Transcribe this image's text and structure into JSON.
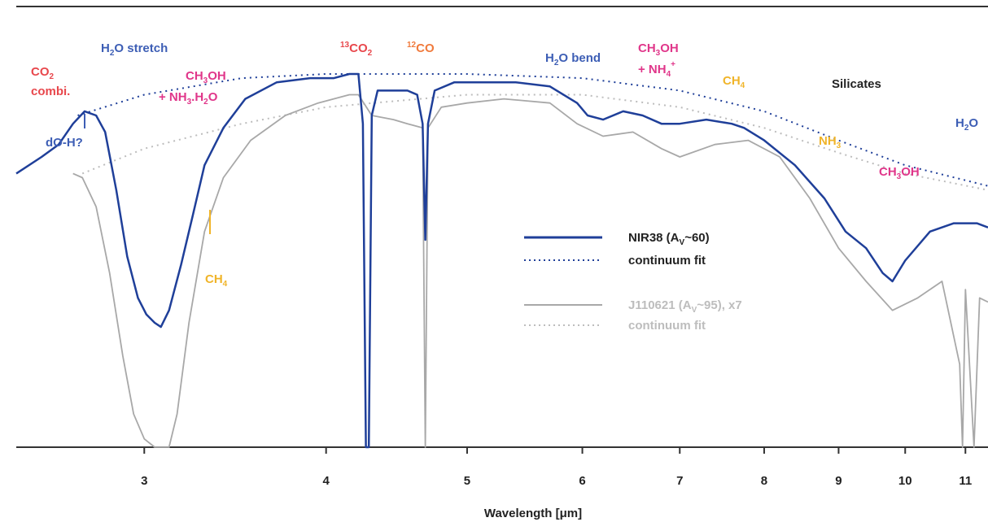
{
  "chart_data": {
    "type": "line",
    "xlabel": "Wavelength [μm]",
    "ylabel": "",
    "xscale": "log",
    "xlim": [
      2.45,
      11.4
    ],
    "ylim": [
      0,
      1
    ],
    "x_ticks": [
      3,
      4,
      5,
      6,
      7,
      8,
      9,
      10,
      11
    ],
    "x_tick_labels": [
      "3",
      "4",
      "5",
      "6",
      "7",
      "8",
      "9",
      "10",
      "11"
    ],
    "grid": false,
    "legend_position": "center-right",
    "series": [
      {
        "name": "NIR38 (A_V~60)",
        "style": "solid",
        "color": "#1f3f99",
        "points": [
          [
            2.45,
            0.66
          ],
          [
            2.55,
            0.7
          ],
          [
            2.62,
            0.73
          ],
          [
            2.68,
            0.78
          ],
          [
            2.73,
            0.81
          ],
          [
            2.78,
            0.8
          ],
          [
            2.82,
            0.76
          ],
          [
            2.87,
            0.62
          ],
          [
            2.92,
            0.46
          ],
          [
            2.97,
            0.36
          ],
          [
            3.01,
            0.32
          ],
          [
            3.05,
            0.3
          ],
          [
            3.08,
            0.29
          ],
          [
            3.12,
            0.33
          ],
          [
            3.18,
            0.44
          ],
          [
            3.24,
            0.56
          ],
          [
            3.3,
            0.68
          ],
          [
            3.4,
            0.77
          ],
          [
            3.52,
            0.84
          ],
          [
            3.7,
            0.88
          ],
          [
            3.9,
            0.89
          ],
          [
            4.05,
            0.89
          ],
          [
            4.15,
            0.9
          ],
          [
            4.21,
            0.9
          ],
          [
            4.24,
            0.78
          ],
          [
            4.26,
            0.0
          ],
          [
            4.28,
            0.0
          ],
          [
            4.3,
            0.8
          ],
          [
            4.34,
            0.86
          ],
          [
            4.45,
            0.86
          ],
          [
            4.55,
            0.86
          ],
          [
            4.62,
            0.85
          ],
          [
            4.66,
            0.78
          ],
          [
            4.68,
            0.5
          ],
          [
            4.7,
            0.78
          ],
          [
            4.75,
            0.86
          ],
          [
            4.9,
            0.88
          ],
          [
            5.1,
            0.88
          ],
          [
            5.4,
            0.88
          ],
          [
            5.7,
            0.87
          ],
          [
            5.95,
            0.83
          ],
          [
            6.05,
            0.8
          ],
          [
            6.2,
            0.79
          ],
          [
            6.4,
            0.81
          ],
          [
            6.6,
            0.8
          ],
          [
            6.8,
            0.78
          ],
          [
            7.0,
            0.78
          ],
          [
            7.3,
            0.79
          ],
          [
            7.6,
            0.78
          ],
          [
            7.75,
            0.77
          ],
          [
            8.0,
            0.74
          ],
          [
            8.4,
            0.68
          ],
          [
            8.8,
            0.6
          ],
          [
            9.1,
            0.52
          ],
          [
            9.4,
            0.48
          ],
          [
            9.65,
            0.42
          ],
          [
            9.8,
            0.4
          ],
          [
            10.0,
            0.45
          ],
          [
            10.4,
            0.52
          ],
          [
            10.8,
            0.54
          ],
          [
            11.2,
            0.54
          ],
          [
            11.4,
            0.53
          ]
        ]
      },
      {
        "name": "continuum fit",
        "style": "dotted",
        "color": "#1f3f99",
        "points": [
          [
            2.7,
            0.8
          ],
          [
            3.0,
            0.85
          ],
          [
            3.5,
            0.89
          ],
          [
            4.0,
            0.9
          ],
          [
            5.0,
            0.9
          ],
          [
            6.0,
            0.89
          ],
          [
            7.0,
            0.86
          ],
          [
            8.0,
            0.81
          ],
          [
            9.0,
            0.74
          ],
          [
            10.0,
            0.68
          ],
          [
            11.4,
            0.63
          ]
        ]
      },
      {
        "name": "J110621 (A_V~95), x7",
        "style": "solid",
        "color": "#a8a8a8",
        "points": [
          [
            2.68,
            0.66
          ],
          [
            2.72,
            0.65
          ],
          [
            2.78,
            0.58
          ],
          [
            2.84,
            0.42
          ],
          [
            2.9,
            0.22
          ],
          [
            2.95,
            0.08
          ],
          [
            3.0,
            0.02
          ],
          [
            3.05,
            0.0
          ],
          [
            3.12,
            0.0
          ],
          [
            3.16,
            0.08
          ],
          [
            3.22,
            0.3
          ],
          [
            3.3,
            0.52
          ],
          [
            3.4,
            0.65
          ],
          [
            3.55,
            0.74
          ],
          [
            3.75,
            0.8
          ],
          [
            3.95,
            0.83
          ],
          [
            4.15,
            0.85
          ],
          [
            4.21,
            0.85
          ],
          [
            4.3,
            0.8
          ],
          [
            4.45,
            0.79
          ],
          [
            4.55,
            0.78
          ],
          [
            4.66,
            0.77
          ],
          [
            4.68,
            0.0
          ],
          [
            4.7,
            0.77
          ],
          [
            4.8,
            0.82
          ],
          [
            5.0,
            0.83
          ],
          [
            5.3,
            0.84
          ],
          [
            5.7,
            0.83
          ],
          [
            5.95,
            0.78
          ],
          [
            6.2,
            0.75
          ],
          [
            6.5,
            0.76
          ],
          [
            6.8,
            0.72
          ],
          [
            7.0,
            0.7
          ],
          [
            7.4,
            0.73
          ],
          [
            7.8,
            0.74
          ],
          [
            8.2,
            0.7
          ],
          [
            8.6,
            0.6
          ],
          [
            9.0,
            0.48
          ],
          [
            9.4,
            0.4
          ],
          [
            9.8,
            0.33
          ],
          [
            10.2,
            0.36
          ],
          [
            10.6,
            0.4
          ],
          [
            10.9,
            0.2
          ],
          [
            10.95,
            0.0
          ],
          [
            11.0,
            0.38
          ],
          [
            11.15,
            0.0
          ],
          [
            11.25,
            0.36
          ],
          [
            11.4,
            0.35
          ]
        ]
      },
      {
        "name": "continuum fit",
        "style": "dotted",
        "color": "#bdbdbd",
        "points": [
          [
            2.72,
            0.66
          ],
          [
            3.0,
            0.72
          ],
          [
            3.5,
            0.78
          ],
          [
            4.0,
            0.82
          ],
          [
            5.0,
            0.85
          ],
          [
            6.0,
            0.85
          ],
          [
            7.0,
            0.82
          ],
          [
            8.0,
            0.77
          ],
          [
            9.0,
            0.71
          ],
          [
            10.0,
            0.66
          ],
          [
            11.4,
            0.62
          ]
        ]
      }
    ],
    "annotations": [
      {
        "text": "CO2 combi.",
        "color": "#e8474c"
      },
      {
        "text": "dO-H?",
        "color": "#3d5eb5"
      },
      {
        "text": "H2O stretch",
        "color": "#3d5eb5"
      },
      {
        "text": "CH3OH + NH3.H2O",
        "color": "#e0368a"
      },
      {
        "text": "CH4",
        "color": "#f0b429"
      },
      {
        "text": "13CO2",
        "color": "#e8474c"
      },
      {
        "text": "12CO",
        "color": "#f07a3c"
      },
      {
        "text": "H2O bend",
        "color": "#3d5eb5"
      },
      {
        "text": "CH3OH + NH4+",
        "color": "#e0368a"
      },
      {
        "text": "CH4",
        "color": "#f0b429"
      },
      {
        "text": "Silicates",
        "color": "#222222"
      },
      {
        "text": "H2O",
        "color": "#3d5eb5"
      },
      {
        "text": "NH3",
        "color": "#f0b429"
      },
      {
        "text": "CH3OH",
        "color": "#e0368a"
      }
    ]
  },
  "legend": [
    {
      "text": "NIR38 (A",
      "sub": "V",
      "tail": "~60)",
      "color": "#222222",
      "line_color": "#1f3f99",
      "style": "solid"
    },
    {
      "text": "continuum fit",
      "sub": "",
      "tail": "",
      "color": "#222222",
      "line_color": "#1f3f99",
      "style": "dotted"
    },
    {
      "text": "J110621 (A",
      "sub": "V",
      "tail": "~95), x7",
      "color": "#bdbdbd",
      "line_color": "#a8a8a8",
      "style": "solid"
    },
    {
      "text": "continuum fit",
      "sub": "",
      "tail": "",
      "color": "#bdbdbd",
      "line_color": "#bdbdbd",
      "style": "dotted"
    }
  ],
  "labels": {
    "co2_main": "CO",
    "co2_sub": "2",
    "co2_line2": "combi.",
    "doh": "dO-H?",
    "h2o_stretch_pre": "H",
    "h2o_stretch_sub": "2",
    "h2o_stretch_post": "O stretch",
    "ch3oh_a_pre": "CH",
    "ch3oh_a_sub": "3",
    "ch3oh_a_post": "OH",
    "nh3h2o_pre": "+ NH",
    "nh3h2o_sub": "3",
    "nh3h2o_mid": ".H",
    "nh3h2o_sub2": "2",
    "nh3h2o_post": "O",
    "ch4_a_pre": "CH",
    "ch4_a_sub": "4",
    "co2_13_sup": "13",
    "co2_13_main": "CO",
    "co2_13_sub": "2",
    "co_12_sup": "12",
    "co_12_main": "CO",
    "h2o_bend_pre": "H",
    "h2o_bend_sub": "2",
    "h2o_bend_post": "O bend",
    "ch3oh_b_pre": "CH",
    "ch3oh_b_sub": "3",
    "ch3oh_b_post": "OH",
    "nh4_pre": "+ NH",
    "nh4_sub": "4",
    "nh4_sup": "+",
    "ch4_b_pre": "CH",
    "ch4_b_sub": "4",
    "silicates": "Silicates",
    "h2o_right_pre": "H",
    "h2o_right_sub": "2",
    "h2o_right_post": "O",
    "nh3_pre": "NH",
    "nh3_sub": "3",
    "ch3oh_c_pre": "CH",
    "ch3oh_c_sub": "3",
    "ch3oh_c_post": "OH"
  }
}
